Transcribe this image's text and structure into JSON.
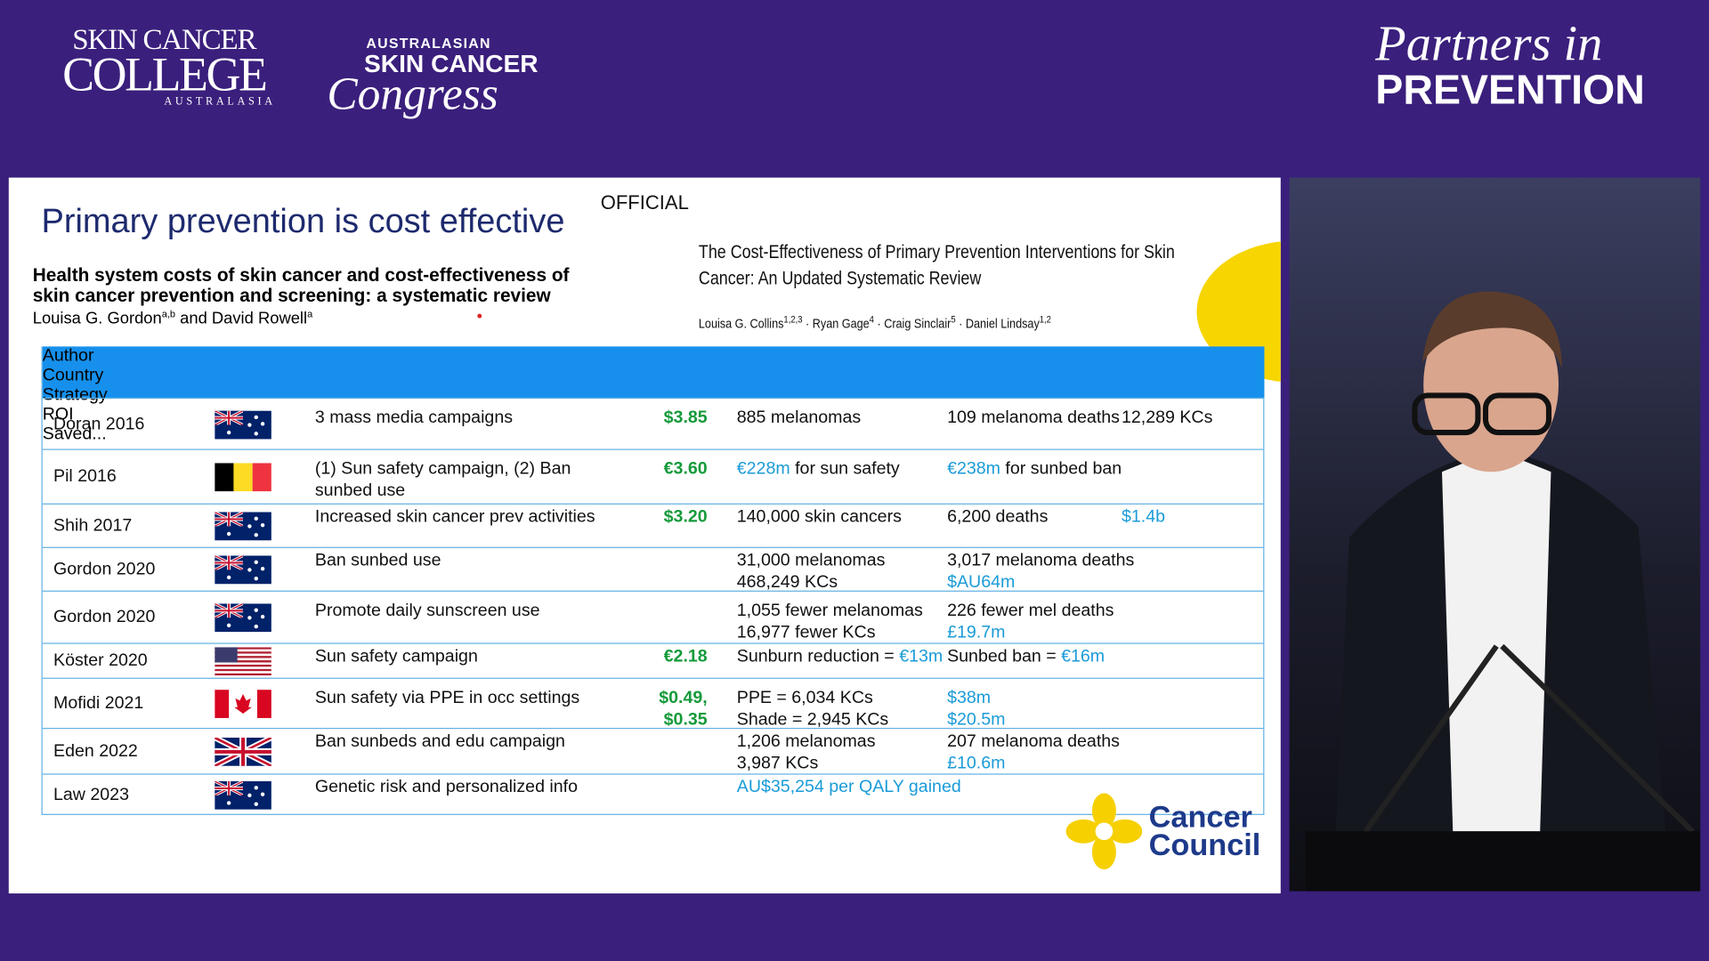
{
  "header": {
    "college_logo": {
      "line1": "SKIN CANCER",
      "line2": "COLLEGE",
      "line3": "AUSTRALASIA"
    },
    "congress_logo": {
      "line1": "AUSTRALASIAN",
      "line2": "SKIN CANCER",
      "line3": "Congress"
    },
    "partners_logo": {
      "line1": "Partners in",
      "line2": "PREVENTION"
    }
  },
  "slide": {
    "title": "Primary prevention is cost effective",
    "marking": "OFFICIAL",
    "paper1": {
      "title_lines": [
        "Health system costs of skin cancer and cost-effectiveness of",
        "skin cancer prevention and screening: a systematic review"
      ],
      "authors": [
        {
          "text": "Louisa G. Gordon",
          "sup": "a,b"
        },
        {
          "text": " and David Rowell",
          "sup": "a"
        }
      ]
    },
    "paper2": {
      "title_lines": [
        "The Cost-Effectiveness of Primary Prevention Interventions for Skin",
        "Cancer: An Updated Systematic Review"
      ],
      "authors": [
        {
          "text": "Louisa G. Collins",
          "sup": "1,2,3"
        },
        {
          "text": " · Ryan Gage",
          "sup": "4"
        },
        {
          "text": " · Craig Sinclair",
          "sup": "5"
        },
        {
          "text": " · Daniel Lindsay",
          "sup": "1,2"
        }
      ]
    },
    "table": {
      "headers": [
        "Author",
        "Country",
        "Strategy",
        "ROI",
        "Saved..."
      ],
      "rows": [
        {
          "author": "Doran 2016",
          "flag": "au",
          "strategy": "3 mass media campaigns",
          "roi": [
            "$3.85"
          ],
          "saved": [
            [
              [
                "885 melanomas"
              ],
              [
                "109 melanoma deaths"
              ],
              [
                "12,289 KCs"
              ]
            ]
          ]
        },
        {
          "author": "Pil 2016",
          "flag": "be",
          "strategy": "(1) Sun safety campaign, (2) Ban sunbed use",
          "roi": [
            "€3.60"
          ],
          "saved": [
            [
              [
                {
                  "text": "€228m",
                  "highlight": true
                },
                " for sun safety"
              ],
              [
                {
                  "text": "€238m",
                  "highlight": true
                },
                " for sunbed ban"
              ]
            ]
          ]
        },
        {
          "author": "Shih 2017",
          "flag": "au",
          "strategy": "Increased skin cancer prev activities",
          "roi": [
            "$3.20"
          ],
          "saved": [
            [
              [
                "140,000 skin cancers"
              ],
              [
                "6,200 deaths"
              ],
              [
                {
                  "text": "$1.4b",
                  "highlight": true
                }
              ]
            ]
          ]
        },
        {
          "author": "Gordon 2020",
          "flag": "au",
          "strategy": "Ban sunbed use",
          "saved": [
            [
              [
                "31,000 melanomas"
              ],
              [
                "3,017 melanoma deaths"
              ]
            ],
            [
              [
                "468,249 KCs"
              ],
              [
                {
                  "text": "$AU64m",
                  "highlight": true
                }
              ]
            ]
          ]
        },
        {
          "author": "Gordon 2020",
          "flag": "au",
          "strategy": "Promote daily sunscreen use",
          "saved": [
            [
              [
                "1,055 fewer melanomas"
              ],
              [
                "226 fewer mel deaths"
              ]
            ],
            [
              [
                "16,977 fewer KCs"
              ],
              [
                {
                  "text": "£19.7m",
                  "highlight": true
                }
              ]
            ]
          ]
        },
        {
          "author": "Köster 2020",
          "flag": "us",
          "strategy": "Sun safety campaign",
          "roi": [
            "€2.18"
          ],
          "saved": [
            [
              [
                "Sunburn reduction = ",
                {
                  "text": "€13m",
                  "highlight": true
                }
              ],
              [
                "Sunbed ban = ",
                {
                  "text": "€16m",
                  "highlight": true
                }
              ]
            ]
          ]
        },
        {
          "author": "Mofidi 2021",
          "flag": "ca",
          "strategy": "Sun safety via PPE in occ settings",
          "roi": [
            "$0.49,",
            "$0.35"
          ],
          "saved": [
            [
              [
                "PPE = 6,034 KCs"
              ],
              [
                {
                  "text": "$38m",
                  "highlight": true
                }
              ]
            ],
            [
              [
                "Shade = 2,945 KCs"
              ],
              [
                {
                  "text": "$20.5m",
                  "highlight": true
                }
              ]
            ]
          ]
        },
        {
          "author": "Eden 2022",
          "flag": "uk",
          "strategy": "Ban sunbeds and edu campaign",
          "saved": [
            [
              [
                "1,206 melanomas"
              ],
              [
                "207 melanoma deaths"
              ]
            ],
            [
              [
                "3,987 KCs"
              ],
              [
                {
                  "text": "£10.6m",
                  "highlight": true
                }
              ]
            ]
          ]
        },
        {
          "author": "Law 2023",
          "flag": "au",
          "strategy": "Genetic risk and personalized info",
          "saved": [
            [
              [
                {
                  "text": "AU$35,254 per QALY gained",
                  "highlight": true
                }
              ]
            ]
          ]
        }
      ]
    },
    "logo": {
      "line1": "Cancer",
      "line2": "Council"
    }
  }
}
